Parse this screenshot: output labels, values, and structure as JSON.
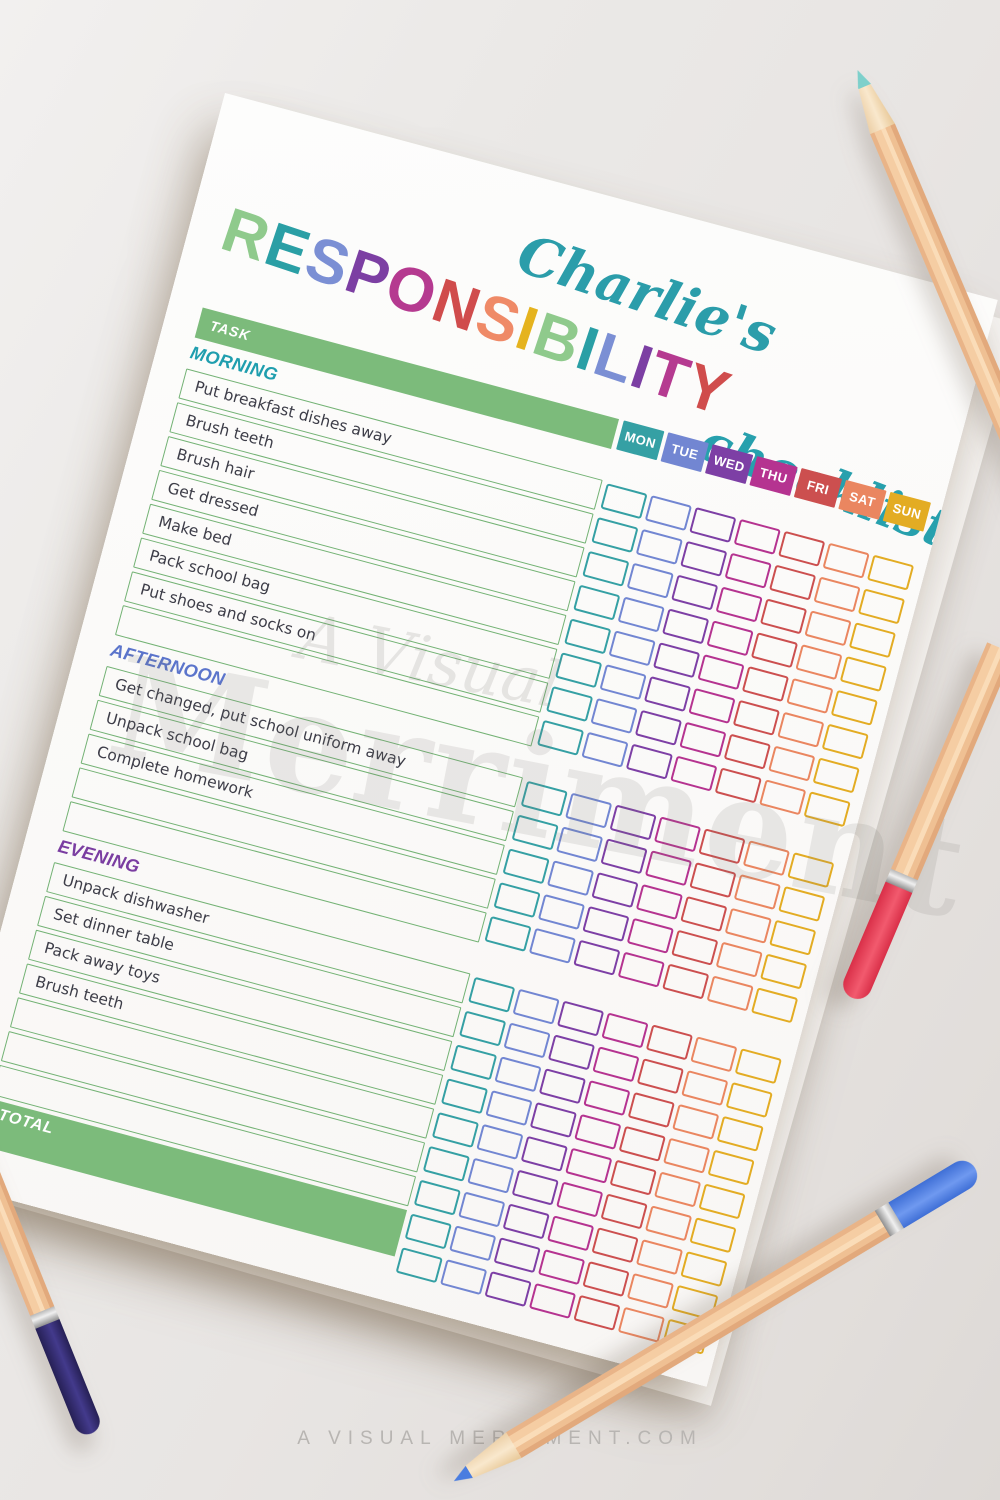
{
  "title": {
    "name": "Charlie's",
    "name_color": "#2b9daa",
    "word": "RESPONSIBILITY",
    "letters": [
      {
        "ch": "R",
        "color": "#8fca8c"
      },
      {
        "ch": "E",
        "color": "#2a9fa5"
      },
      {
        "ch": "S",
        "color": "#7b8fd4"
      },
      {
        "ch": "P",
        "color": "#7c3fa3"
      },
      {
        "ch": "O",
        "color": "#b53a90"
      },
      {
        "ch": "N",
        "color": "#d04c4c"
      },
      {
        "ch": "S",
        "color": "#ef8a67"
      },
      {
        "ch": "I",
        "color": "#e5b31e"
      },
      {
        "ch": "B",
        "color": "#8fca8c"
      },
      {
        "ch": "I",
        "color": "#2a9fa5"
      },
      {
        "ch": "L",
        "color": "#7b8fd4"
      },
      {
        "ch": "I",
        "color": "#7c3fa3"
      },
      {
        "ch": "T",
        "color": "#b53a90"
      },
      {
        "ch": "Y",
        "color": "#d04c4c"
      }
    ],
    "script": "checklist",
    "script_color": "#27a0ad"
  },
  "table": {
    "task_header": "TASK",
    "days": [
      {
        "label": "MON",
        "color": "#35a0a4"
      },
      {
        "label": "TUE",
        "color": "#7286d2"
      },
      {
        "label": "WED",
        "color": "#7d3fa5"
      },
      {
        "label": "THU",
        "color": "#b53390"
      },
      {
        "label": "FRI",
        "color": "#cc4f4f"
      },
      {
        "label": "SAT",
        "color": "#ea8660"
      },
      {
        "label": "SUN",
        "color": "#e3ac23"
      }
    ]
  },
  "sections": [
    {
      "label": "MORNING",
      "color": "#1f9eae",
      "tasks": [
        "Put breakfast dishes away",
        "Brush teeth",
        "Brush hair",
        "Get dressed",
        "Make bed",
        "Pack school bag",
        "Put shoes and socks on",
        ""
      ]
    },
    {
      "label": "AFTERNOON",
      "color": "#5b74cb",
      "tasks": [
        "Get changed, put school uniform away",
        "Unpack school bag",
        "Complete homework",
        "",
        ""
      ]
    },
    {
      "label": "EVENING",
      "color": "#7a3da1",
      "tasks": [
        "Unpack dishwasher",
        "Set dinner table",
        "Pack away toys",
        "Brush teeth",
        "",
        "",
        ""
      ]
    }
  ],
  "total": {
    "label": "TOTAL"
  },
  "watermark": {
    "line1": "A Visual",
    "line2": "Merriment"
  },
  "footer": {
    "text": "A VISUAL MERRIMENT.COM"
  },
  "palette": {
    "green_fill": "#7cbb7b",
    "green_border": "#73b274",
    "task_text": "#3d3d48",
    "paper": "#fdfdfc",
    "pencil_cyan_lead": "#7ed0cb",
    "pencil_red_cap": "#ee4058",
    "pencil_blue_cap": "#5585e5",
    "pencil_navy_cap": "#322b6f"
  }
}
